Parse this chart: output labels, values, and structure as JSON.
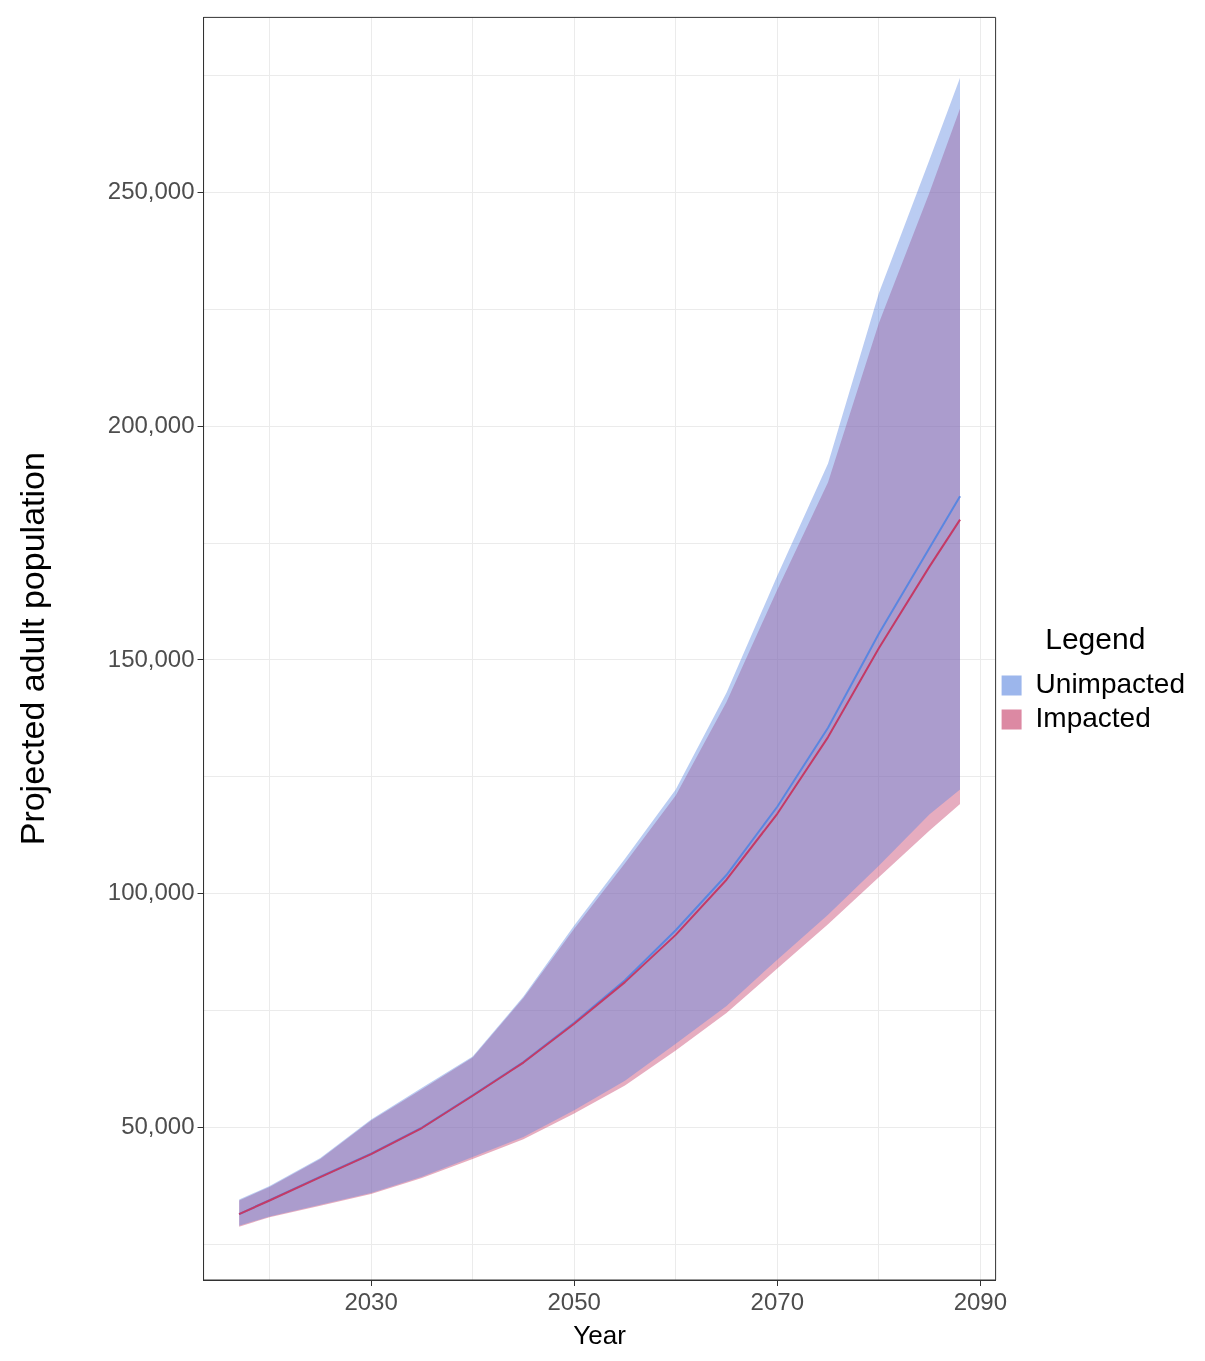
{
  "chart_data": {
    "type": "line",
    "xlabel": "Year",
    "ylabel": "Projected adult population",
    "legend_title": "Legend",
    "legend": "right",
    "grid": true,
    "marker": "none",
    "line_style": "solid",
    "x": [
      2017,
      2020,
      2025,
      2030,
      2035,
      2040,
      2045,
      2050,
      2055,
      2060,
      2065,
      2070,
      2075,
      2080,
      2085,
      2088
    ],
    "xlim": [
      2013.5,
      2091.5
    ],
    "xticks": [
      {
        "value": 2020,
        "label": null
      },
      2030,
      {
        "value": 2040,
        "label": null
      },
      2050,
      {
        "value": 2060,
        "label": null
      },
      2070,
      {
        "value": 2080,
        "label": null
      },
      2090
    ],
    "ylim": [
      17400,
      287400
    ],
    "yticks": [
      {
        "value": 25000,
        "label": null
      },
      {
        "value": 50000,
        "label": "50,000"
      },
      {
        "value": 75000,
        "label": null
      },
      {
        "value": 100000,
        "label": "100,000"
      },
      {
        "value": 125000,
        "label": null
      },
      {
        "value": 150000,
        "label": "150,000"
      },
      {
        "value": 175000,
        "label": null
      },
      {
        "value": 200000,
        "label": "200,000"
      },
      {
        "value": 225000,
        "label": null
      },
      {
        "value": 250000,
        "label": "250,000"
      },
      {
        "value": 275000,
        "label": null
      }
    ],
    "series": [
      {
        "name": "Unimpacted",
        "color": "#5a86e0",
        "values": [
          31500,
          34500,
          39500,
          44400,
          50000,
          56900,
          64000,
          72400,
          81500,
          92200,
          104000,
          118600,
          135500,
          155600,
          174000,
          185000
        ],
        "lower": [
          29000,
          31000,
          33500,
          36000,
          39500,
          43700,
          48000,
          53700,
          60000,
          67900,
          76000,
          85900,
          95500,
          106000,
          117000,
          122300
        ],
        "upper": [
          34600,
          37500,
          43500,
          51700,
          58500,
          65200,
          78000,
          93200,
          107500,
          122300,
          143000,
          168000,
          192000,
          228400,
          257000,
          274500
        ]
      },
      {
        "name": "Impacted",
        "color": "#c43a66",
        "values": [
          31500,
          34400,
          39400,
          44300,
          49900,
          56800,
          63900,
          72200,
          81100,
          91200,
          103000,
          117100,
          133500,
          152500,
          170000,
          180000
        ],
        "lower": [
          28800,
          30800,
          33300,
          35800,
          39200,
          43300,
          47500,
          53000,
          59000,
          66500,
          74500,
          84000,
          93500,
          103500,
          113500,
          119200
        ],
        "upper": [
          34400,
          37300,
          43300,
          51500,
          58200,
          65000,
          77700,
          92500,
          106500,
          121000,
          141000,
          165000,
          188000,
          222000,
          250000,
          267900
        ]
      }
    ]
  }
}
